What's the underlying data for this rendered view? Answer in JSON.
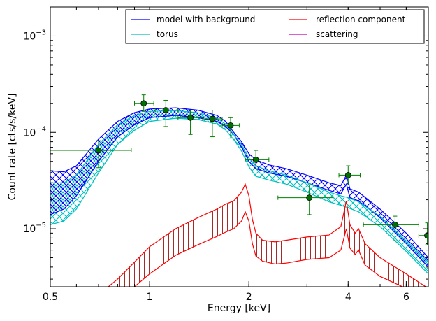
{
  "chart_data": {
    "type": "line",
    "title": "",
    "xlabel": "Energy [keV]",
    "ylabel": "Count rate [cts/s/keV]",
    "x_scale": "log",
    "y_scale": "log",
    "xlim": [
      0.5,
      7.0
    ],
    "ylim": [
      2.5e-06,
      0.002
    ],
    "grid": false,
    "legend_position": "top-right",
    "x_ticks": [
      {
        "value": 0.5,
        "label": "0.5"
      },
      {
        "value": 1,
        "label": "1"
      },
      {
        "value": 2,
        "label": "2"
      },
      {
        "value": 4,
        "label": "4"
      },
      {
        "value": 6,
        "label": "6"
      }
    ],
    "y_ticks": [
      {
        "value": 1e-05,
        "base": "10",
        "exp": "−5"
      },
      {
        "value": 0.0001,
        "base": "10",
        "exp": "−4"
      },
      {
        "value": 0.001,
        "base": "10",
        "exp": "−3"
      }
    ],
    "legend": [
      {
        "label": "model with background",
        "color": "#0000ff"
      },
      {
        "label": "torus",
        "color": "#00bfbf"
      },
      {
        "label": "reflection component",
        "color": "#ff0000"
      },
      {
        "label": "scattering",
        "color": "#bf00bf"
      }
    ],
    "colors": {
      "model": "#0000ff",
      "torus": "#00bfbf",
      "reflection": "#ff0000",
      "reflection_hatch": "#a52a2a",
      "data": "#008000",
      "data_fill": "#007000"
    },
    "series": [
      {
        "key": "model_upper",
        "x": [
          0.5,
          0.55,
          0.6,
          0.7,
          0.8,
          0.9,
          1.0,
          1.2,
          1.4,
          1.6,
          1.7,
          1.8,
          1.9,
          2.0,
          2.1,
          2.3,
          2.6,
          3.0,
          3.5,
          3.8,
          3.95,
          4.05,
          4.3,
          5.0,
          6.0,
          7.0
        ],
        "y": [
          4e-05,
          3.9e-05,
          4.5e-05,
          8.5e-05,
          0.00013,
          0.00016,
          0.000175,
          0.00018,
          0.00017,
          0.00015,
          0.00013,
          0.0001,
          8e-05,
          6e-05,
          5.2e-05,
          4.6e-05,
          4.2e-05,
          3.6e-05,
          3e-05,
          2.8e-05,
          3.6e-05,
          2.6e-05,
          2.4e-05,
          1.6e-05,
          9e-06,
          5e-06
        ]
      },
      {
        "key": "model_lower",
        "x": [
          0.5,
          0.55,
          0.6,
          0.7,
          0.8,
          0.9,
          1.0,
          1.2,
          1.4,
          1.6,
          1.7,
          1.8,
          1.9,
          2.0,
          2.1,
          2.3,
          2.6,
          3.0,
          3.5,
          3.8,
          3.95,
          4.05,
          4.3,
          5.0,
          6.0,
          7.0
        ],
        "y": [
          1.4e-05,
          1.6e-05,
          2.2e-05,
          5e-05,
          9e-05,
          0.00012,
          0.000142,
          0.00015,
          0.000142,
          0.00013,
          0.000115,
          9.5e-05,
          7e-05,
          5e-05,
          4.2e-05,
          3.8e-05,
          3.5e-05,
          3e-05,
          2.5e-05,
          2.3e-05,
          2.9e-05,
          2.1e-05,
          1.95e-05,
          1.3e-05,
          7e-06,
          4e-06
        ]
      },
      {
        "key": "torus_upper",
        "x": [
          0.5,
          0.55,
          0.6,
          0.7,
          0.8,
          0.9,
          1.0,
          1.2,
          1.4,
          1.6,
          1.7,
          1.8,
          1.9,
          2.0,
          2.1,
          2.3,
          2.6,
          3.0,
          3.5,
          3.8,
          4.0,
          4.3,
          5.0,
          6.0,
          7.0
        ],
        "y": [
          3e-05,
          3e-05,
          3.6e-05,
          7.5e-05,
          0.00012,
          0.00015,
          0.000165,
          0.000168,
          0.00016,
          0.00014,
          0.000122,
          9.5e-05,
          7.4e-05,
          5.4e-05,
          4.5e-05,
          4e-05,
          3.6e-05,
          3e-05,
          2.4e-05,
          2.2e-05,
          2.1e-05,
          1.9e-05,
          1.35e-05,
          7.5e-06,
          4.5e-06
        ]
      },
      {
        "key": "torus_lower",
        "x": [
          0.5,
          0.55,
          0.6,
          0.7,
          0.8,
          0.9,
          1.0,
          1.2,
          1.4,
          1.6,
          1.7,
          1.8,
          1.9,
          2.0,
          2.1,
          2.3,
          2.6,
          3.0,
          3.5,
          3.8,
          4.0,
          4.3,
          5.0,
          6.0,
          7.0
        ],
        "y": [
          1.1e-05,
          1.2e-05,
          1.6e-05,
          3.8e-05,
          7.5e-05,
          0.000105,
          0.00013,
          0.00014,
          0.000136,
          0.000122,
          0.000106,
          8.4e-05,
          6.4e-05,
          4.4e-05,
          3.5e-05,
          3.2e-05,
          2.9e-05,
          2.4e-05,
          1.9e-05,
          1.75e-05,
          1.65e-05,
          1.5e-05,
          1.05e-05,
          5.8e-06,
          3.4e-06
        ]
      },
      {
        "key": "reflection_upper",
        "x": [
          0.75,
          0.8,
          0.9,
          1.0,
          1.2,
          1.4,
          1.6,
          1.7,
          1.8,
          1.9,
          1.95,
          2.0,
          2.05,
          2.1,
          2.2,
          2.4,
          2.6,
          3.0,
          3.5,
          3.8,
          3.95,
          4.05,
          4.2,
          4.3,
          4.5,
          5.0,
          6.0,
          7.0
        ],
        "y": [
          2.5e-06,
          3e-06,
          4.5e-06,
          6.5e-06,
          1e-05,
          1.3e-05,
          1.6e-05,
          1.8e-05,
          1.95e-05,
          2.4e-05,
          2.9e-05,
          2.2e-05,
          1.25e-05,
          9e-06,
          7.6e-06,
          7.3e-06,
          7.6e-06,
          8.2e-06,
          8.6e-06,
          1.05e-05,
          1.95e-05,
          1.1e-05,
          9e-06,
          1e-05,
          7e-06,
          5e-06,
          3.4e-06,
          2.4e-06
        ]
      },
      {
        "key": "reflection_lower",
        "x": [
          0.9,
          1.0,
          1.2,
          1.4,
          1.6,
          1.7,
          1.8,
          1.9,
          1.95,
          2.0,
          2.05,
          2.1,
          2.2,
          2.4,
          2.6,
          3.0,
          3.5,
          3.8,
          3.95,
          4.05,
          4.2,
          4.3,
          4.5,
          5.0,
          6.0,
          7.0
        ],
        "y": [
          2.5e-06,
          3.4e-06,
          5.3e-06,
          6.8e-06,
          8.3e-06,
          9.2e-06,
          1e-05,
          1.2e-05,
          1.5e-05,
          1.2e-05,
          7e-06,
          5.2e-06,
          4.6e-06,
          4.3e-06,
          4.4e-06,
          4.8e-06,
          5e-06,
          6e-06,
          1e-05,
          6.3e-06,
          5.4e-06,
          6e-06,
          4.2e-06,
          3.2e-06,
          2.4e-06,
          2e-06
        ]
      }
    ],
    "data_points": [
      {
        "x": 0.7,
        "y": 6.5e-05,
        "xlo": 0.5,
        "xhi": 0.88,
        "ylo": 4.3e-05,
        "yhi": 8.2e-05
      },
      {
        "x": 0.96,
        "y": 0.0002,
        "xlo": 0.9,
        "xhi": 1.03,
        "ylo": 0.000165,
        "yhi": 0.000245
      },
      {
        "x": 1.12,
        "y": 0.00017,
        "xlo": 1.04,
        "xhi": 1.22,
        "ylo": 0.000115,
        "yhi": 0.000215
      },
      {
        "x": 1.33,
        "y": 0.000142,
        "xlo": 1.22,
        "xhi": 1.45,
        "ylo": 9.5e-05,
        "yhi": 0.00017
      },
      {
        "x": 1.55,
        "y": 0.000138,
        "xlo": 1.45,
        "xhi": 1.66,
        "ylo": 9e-05,
        "yhi": 0.00017
      },
      {
        "x": 1.76,
        "y": 0.000118,
        "xlo": 1.66,
        "xhi": 1.87,
        "ylo": 8.7e-05,
        "yhi": 0.000142
      },
      {
        "x": 2.1,
        "y": 5.2e-05,
        "xlo": 1.95,
        "xhi": 2.3,
        "ylo": 4.2e-05,
        "yhi": 6.5e-05
      },
      {
        "x": 3.05,
        "y": 2.1e-05,
        "xlo": 2.45,
        "xhi": 3.6,
        "ylo": 1.4e-05,
        "yhi": 2.85e-05
      },
      {
        "x": 4.0,
        "y": 3.6e-05,
        "xlo": 3.75,
        "xhi": 4.35,
        "ylo": 2.85e-05,
        "yhi": 4.5e-05
      },
      {
        "x": 5.55,
        "y": 1.1e-05,
        "xlo": 4.45,
        "xhi": 6.55,
        "ylo": 7.5e-06,
        "yhi": 1.35e-05
      },
      {
        "x": 6.95,
        "y": 8.5e-06,
        "xlo": 6.55,
        "xhi": 7.0,
        "ylo": 6.8e-06,
        "yhi": 1.15e-05
      }
    ]
  }
}
